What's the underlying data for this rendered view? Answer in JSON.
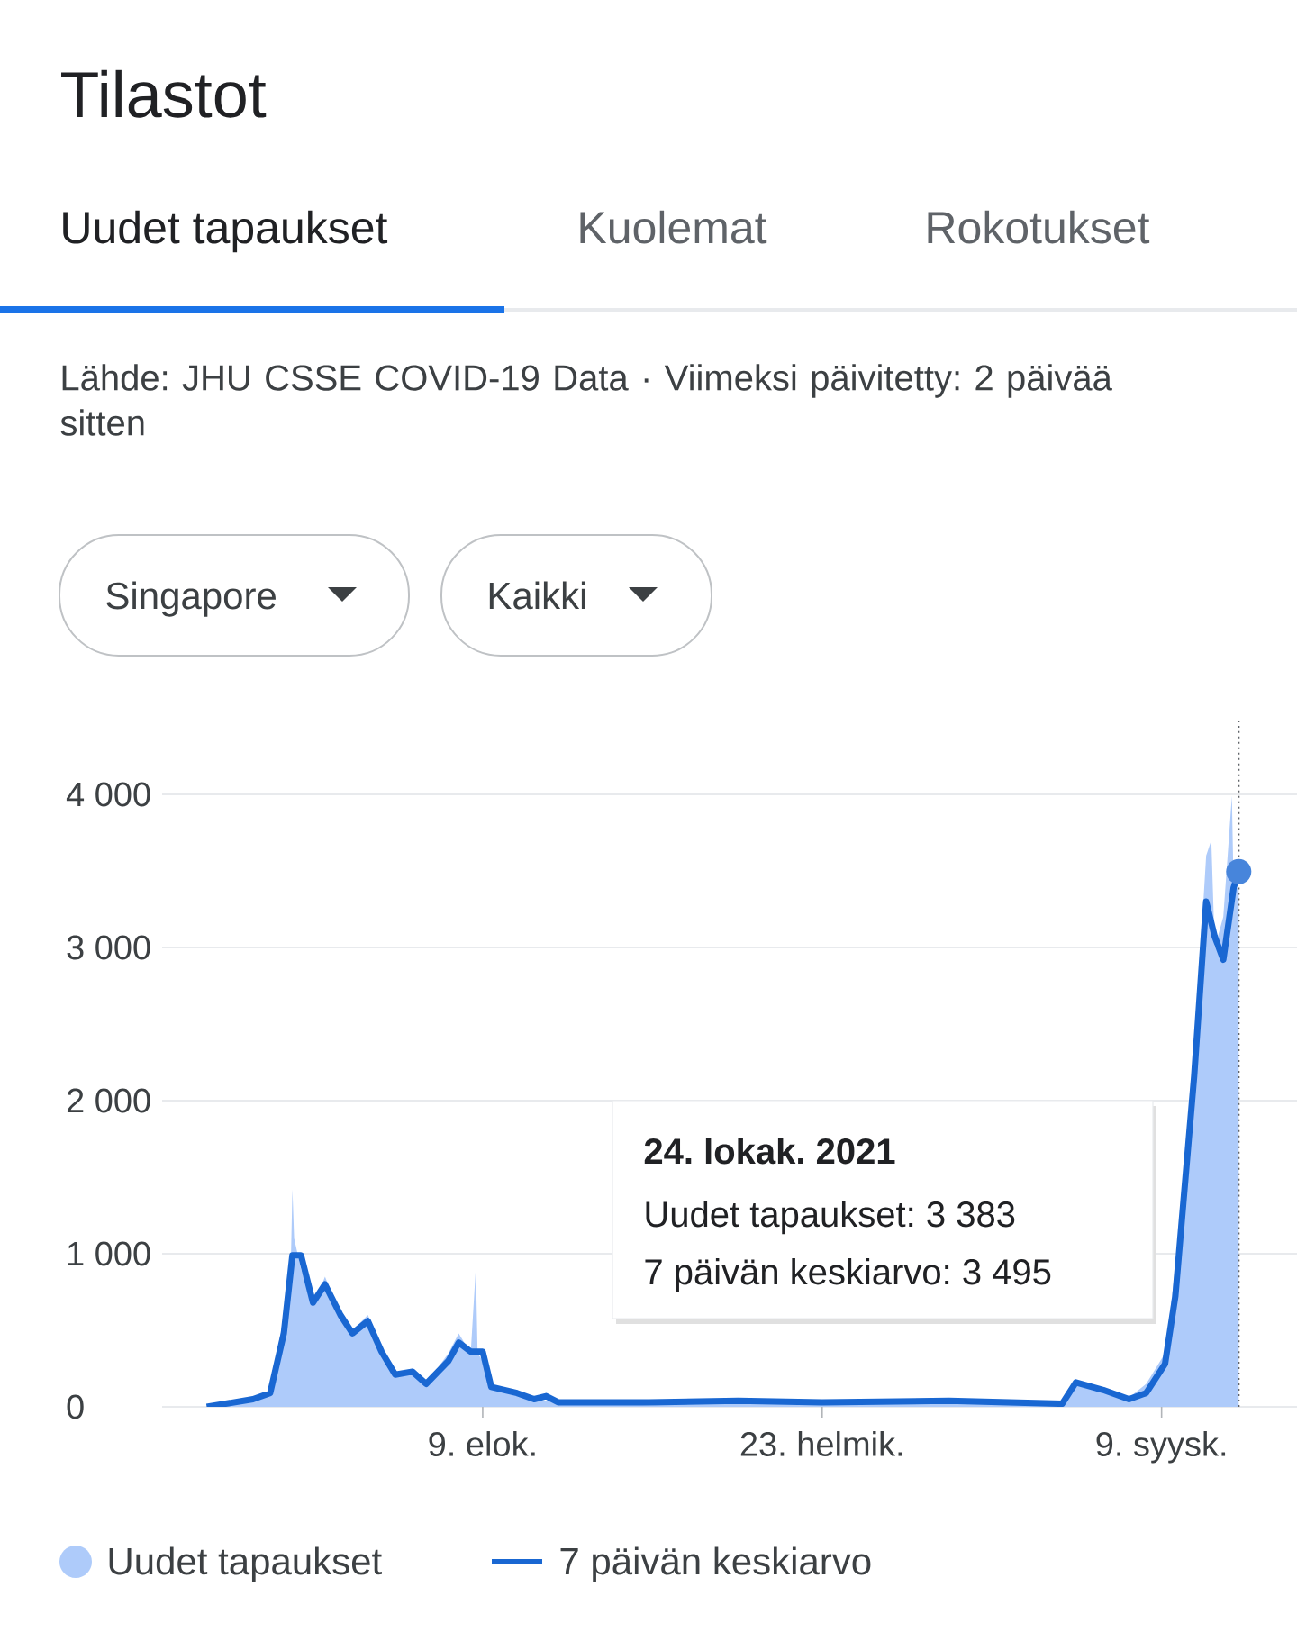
{
  "chart_data": {
    "type": "line",
    "title": "Tilastot",
    "annotations": [
      "Uudet tapaukset",
      "Kuolemat",
      "Rokotukset",
      "Lähde: JHU CSSE COVID-19 Data · Viimeksi päivitetty: 2 päivää sitten",
      "Singapore",
      "Kaikki",
      "24. lokak. 2021",
      "Uudet tapaukset: 3 383",
      "7 päivän keskiarvo: 3 495"
    ],
    "series": [
      {
        "name": "Uudet tapaukset",
        "type": "area",
        "color": "#aecbfa",
        "x": [
          "2020-03-01",
          "2020-03-28",
          "2020-04-07",
          "2020-04-15",
          "2020-04-19",
          "2020-04-20",
          "2020-04-21",
          "2020-04-25",
          "2020-05-02",
          "2020-05-09",
          "2020-05-18",
          "2020-05-25",
          "2020-06-03",
          "2020-06-11",
          "2020-06-19",
          "2020-06-29",
          "2020-07-07",
          "2020-07-20",
          "2020-07-26",
          "2020-08-02",
          "2020-08-05",
          "2020-08-06",
          "2020-08-09",
          "2020-08-14",
          "2020-08-29",
          "2020-09-08",
          "2020-09-22",
          "2020-11-14",
          "2021-01-05",
          "2021-02-23",
          "2021-05-08",
          "2021-07-13",
          "2021-07-21",
          "2021-08-06",
          "2021-08-21",
          "2021-08-31",
          "2021-09-11",
          "2021-09-17",
          "2021-09-28",
          "2021-10-05",
          "2021-10-08",
          "2021-10-10",
          "2021-10-15",
          "2021-10-20",
          "2021-10-21",
          "2021-10-24"
        ],
        "values": [
          0,
          50,
          100,
          600,
          900,
          1420,
          1100,
          900,
          650,
          850,
          600,
          500,
          600,
          400,
          200,
          250,
          150,
          350,
          480,
          350,
          910,
          350,
          300,
          120,
          80,
          50,
          30,
          10,
          30,
          20,
          40,
          20,
          180,
          100,
          60,
          150,
          350,
          900,
          2300,
          3600,
          3700,
          3000,
          3200,
          3990,
          3400,
          3383
        ]
      },
      {
        "name": "7 päivän keskiarvo",
        "color": "#1967d2",
        "x": [
          "2020-03-01",
          "2020-03-28",
          "2020-04-07",
          "2020-04-15",
          "2020-04-20",
          "2020-04-25",
          "2020-05-02",
          "2020-05-09",
          "2020-05-18",
          "2020-05-25",
          "2020-06-03",
          "2020-06-11",
          "2020-06-19",
          "2020-06-29",
          "2020-07-07",
          "2020-07-20",
          "2020-07-26",
          "2020-08-02",
          "2020-08-09",
          "2020-08-14",
          "2020-08-29",
          "2020-09-08",
          "2020-09-15",
          "2020-09-22",
          "2020-11-14",
          "2021-01-05",
          "2021-02-23",
          "2021-05-08",
          "2021-07-13",
          "2021-07-21",
          "2021-08-06",
          "2021-08-21",
          "2021-08-31",
          "2021-09-11",
          "2021-09-17",
          "2021-09-28",
          "2021-10-05",
          "2021-10-10",
          "2021-10-15",
          "2021-10-21",
          "2021-10-24"
        ],
        "values": [
          0,
          50,
          90,
          480,
          990,
          990,
          680,
          800,
          600,
          480,
          560,
          360,
          210,
          230,
          150,
          300,
          420,
          360,
          360,
          130,
          90,
          50,
          70,
          30,
          30,
          40,
          30,
          40,
          20,
          160,
          110,
          50,
          90,
          280,
          720,
          2160,
          3300,
          3070,
          2920,
          3390,
          3495
        ]
      }
    ],
    "xlim": [
      "2020-02-04",
      "2021-11-27"
    ],
    "xticks": [
      {
        "value": "2020-08-09",
        "label": "9. elok."
      },
      {
        "value": "2021-02-23",
        "label": "23. helmik."
      },
      {
        "value": "2021-09-09",
        "label": "9. syysk."
      }
    ],
    "ylim": [
      0,
      4500
    ],
    "yticks": [
      0,
      {
        "value": 1000,
        "label": "1 000"
      },
      {
        "value": 2000,
        "label": "2 000"
      },
      {
        "value": 3000,
        "label": "3 000"
      },
      {
        "value": 4000,
        "label": "4 000"
      }
    ],
    "grid": "y",
    "legend": "bottom",
    "marker": "none",
    "line_style": "solid",
    "ref_lines": [
      {
        "axis": "x",
        "value": "2021-10-24",
        "line_style": "dotted",
        "color": "#5f6368"
      }
    ]
  }
}
